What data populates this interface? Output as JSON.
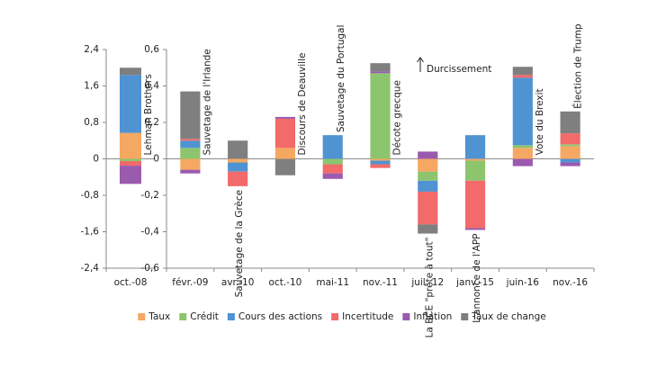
{
  "chart_data": [
    {
      "type": "bar",
      "stacked": true,
      "categories": [
        "oct.-08"
      ],
      "annotations": [
        "Lehman Brothers"
      ],
      "ylim": [
        -2.4,
        2.4
      ],
      "yticks": [
        {
          "value": -2.4,
          "label": "-2,4"
        },
        {
          "value": -1.6,
          "label": "-1,6"
        },
        {
          "value": -0.8,
          "label": "-0,8"
        },
        0,
        {
          "value": 0.8,
          "label": "0,8"
        },
        {
          "value": 1.6,
          "label": "1,6"
        },
        {
          "value": 2.4,
          "label": "2,4"
        }
      ],
      "series": [
        {
          "values": [
            0.57
          ]
        },
        {
          "values": [
            -0.05
          ]
        },
        {
          "values": [
            1.27
          ]
        },
        {
          "values": [
            -0.1
          ]
        },
        {
          "values": [
            -0.4
          ]
        },
        {
          "values": [
            0.16
          ]
        }
      ]
    },
    {
      "type": "bar",
      "stacked": true,
      "categories": [
        "févr.-09",
        "avr.-10",
        "oct.-10",
        "mai-11",
        "nov.-11",
        "juil.-12",
        "janv.-15",
        "juin-16",
        "nov.-16"
      ],
      "annotations": [
        "Sauvetage de l'Irlande",
        "Sauvetage de la Grèce",
        "Discours de Deauville",
        "Sauvetage du Portugal",
        "Décote grecque",
        "La BCE  \"prête à tout\"",
        "L'annonce de l'APP",
        "Vote du Brexit",
        "Élection de Trump"
      ],
      "note": "Durcissement",
      "ylim": [
        -0.6,
        0.6
      ],
      "yticks": [
        {
          "value": -0.6,
          "label": "-0,6"
        },
        {
          "value": -0.4,
          "label": "-0,4"
        },
        {
          "value": -0.2,
          "label": "-0,2"
        },
        0,
        {
          "value": 0.2,
          "label": "0,2"
        },
        {
          "value": 0.4,
          "label": "0,4"
        },
        {
          "value": 0.6,
          "label": "0,6"
        }
      ],
      "series": [
        {
          "name": "Taux",
          "color": "#f5a862",
          "values": [
            -0.06,
            -0.02,
            0.06,
            0,
            -0.01,
            -0.07,
            -0.01,
            0.06,
            0.07
          ]
        },
        {
          "name": "Crédit",
          "color": "#8cc56e",
          "values": [
            0.06,
            0,
            0,
            -0.03,
            0.47,
            -0.05,
            -0.11,
            0.015,
            0.01
          ]
        },
        {
          "name": "Cours des actions",
          "color": "#4f93d2",
          "values": [
            0.04,
            -0.05,
            0,
            0.13,
            -0.02,
            -0.06,
            0.13,
            0.37,
            -0.02
          ]
        },
        {
          "name": "Incertitude",
          "color": "#f26a6a",
          "values": [
            0.01,
            -0.08,
            0.16,
            -0.05,
            -0.02,
            -0.18,
            -0.26,
            0.015,
            0.06
          ]
        },
        {
          "name": "Inflation",
          "color": "#9a5aae",
          "values": [
            -0.02,
            0,
            0.01,
            -0.03,
            0.01,
            0.04,
            -0.01,
            -0.04,
            -0.02
          ]
        },
        {
          "name": "Taux de change",
          "color": "#7f7f7f",
          "values": [
            0.26,
            0.1,
            -0.09,
            0,
            0.045,
            -0.05,
            0,
            0.045,
            0.12
          ]
        }
      ]
    }
  ]
}
